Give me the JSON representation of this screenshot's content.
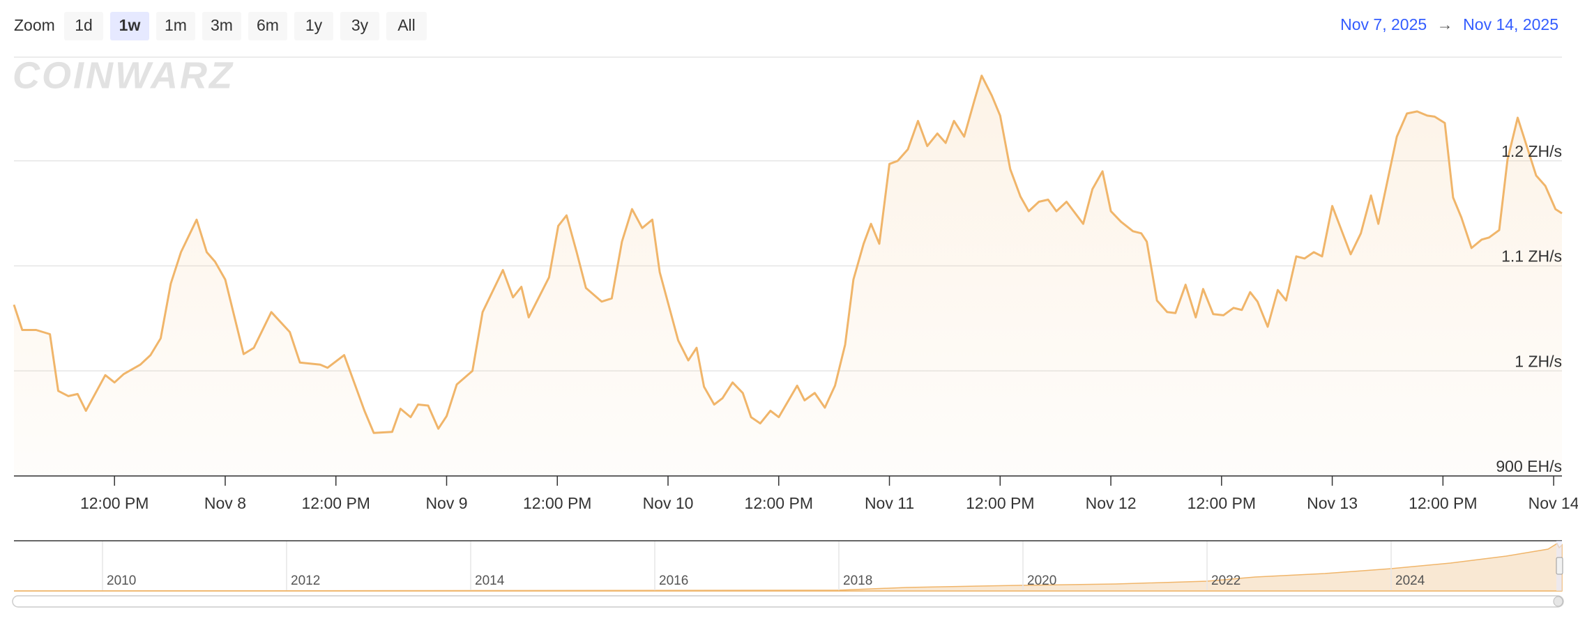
{
  "zoom": {
    "label": "Zoom",
    "buttons": [
      "1d",
      "1w",
      "1m",
      "3m",
      "6m",
      "1y",
      "3y",
      "All"
    ],
    "selected": 1
  },
  "range": {
    "from": "Nov 7, 2025",
    "separator": "→",
    "to": "Nov 14, 2025"
  },
  "watermark": "COINWARZ",
  "chart_data": {
    "type": "area",
    "color": "#f0b56a",
    "x": [
      1.1,
      2.0,
      3.5,
      5.0,
      5.9,
      7.0,
      8.0,
      8.9,
      11.0,
      12.0,
      13.0,
      14.8,
      15.9,
      17.0,
      18.1,
      19.2,
      20.9,
      22.0,
      22.9,
      24.0,
      26.0,
      27.1,
      29.0,
      31.0,
      32.1,
      34.3,
      35.1,
      36.9,
      39.1,
      40.1,
      42.1,
      43.0,
      44.1,
      44.9,
      46.0,
      47.1,
      48.0,
      49.1,
      50.8,
      51.9,
      54.1,
      55.2,
      56.1,
      56.9,
      59.1,
      60.1,
      61.0,
      62.1,
      63.1,
      64.8,
      65.9,
      67.0,
      68.1,
      69.2,
      70.3,
      71.1,
      73.1,
      74.2,
      75.1,
      75.9,
      77.0,
      77.9,
      79.0,
      80.1,
      81.0,
      82.0,
      83.1,
      84.0,
      86.0,
      86.8,
      87.9,
      89.0,
      90.1,
      91.2,
      92.1,
      93.2,
      94.0,
      94.9,
      96.0,
      96.9,
      98.0,
      99.1,
      100.1,
      101.2,
      102.1,
      103.0,
      104.1,
      105.2,
      106.0,
      107.1,
      108.0,
      109.1,
      110.2,
      111.1,
      112.2,
      113.2,
      114.1,
      115.2,
      117.0,
      118.0,
      119.1,
      120.0,
      121.1,
      122.4,
      123.3,
      123.9,
      125.0,
      126.1,
      127.0,
      128.1,
      129.2,
      130.0,
      131.1,
      132.2,
      133.3,
      134.2,
      135.1,
      135.9,
      137.0,
      138.1,
      139.0,
      140.1,
      141.0,
      142.0,
      142.9,
      144.0,
      146.0,
      147.1,
      148.2,
      149.0,
      151.0,
      152.1,
      153.2,
      154.3,
      155.1,
      156.2,
      157.1,
      158.0,
      159.1,
      160.2,
      161.0,
      162.1,
      163.0,
      164.1,
      166.1,
      167.1,
      168.2,
      168.9
    ],
    "values": [
      1063,
      1039,
      1039,
      1035,
      981,
      976,
      978,
      962,
      996,
      989,
      997,
      1006,
      1015,
      1031,
      1083,
      1113,
      1144,
      1113,
      1104,
      1087,
      1016,
      1022,
      1056,
      1037,
      1008,
      1006,
      1003,
      1015,
      962,
      941,
      942,
      964,
      956,
      968,
      967,
      945,
      957,
      987,
      1000,
      1056,
      1096,
      1070,
      1080,
      1051,
      1089,
      1138,
      1148,
      1113,
      1079,
      1066,
      1069,
      1123,
      1154,
      1136,
      1144,
      1094,
      1029,
      1010,
      1022,
      985,
      968,
      974,
      989,
      979,
      956,
      950,
      962,
      956,
      986,
      972,
      979,
      965,
      986,
      1025,
      1087,
      1121,
      1140,
      1121,
      1197,
      1200,
      1211,
      1238,
      1214,
      1226,
      1217,
      1238,
      1223,
      1257,
      1281,
      1262,
      1243,
      1192,
      1166,
      1152,
      1161,
      1163,
      1152,
      1161,
      1140,
      1173,
      1190,
      1152,
      1142,
      1133,
      1131,
      1123,
      1067,
      1056,
      1055,
      1082,
      1051,
      1078,
      1054,
      1053,
      1060,
      1058,
      1075,
      1066,
      1042,
      1077,
      1067,
      1109,
      1107,
      1113,
      1109,
      1157,
      1111,
      1131,
      1167,
      1140,
      1223,
      1245,
      1247,
      1243,
      1242,
      1236,
      1165,
      1146,
      1117,
      1125,
      1127,
      1134,
      1201,
      1241,
      1186,
      1176,
      1154,
      1150
    ],
    "xlim": [
      1.1,
      168.9
    ],
    "xticks": [
      {
        "value": 12,
        "label": "12:00 PM"
      },
      {
        "value": 24,
        "label": "Nov 8"
      },
      {
        "value": 36,
        "label": "12:00 PM"
      },
      {
        "value": 48,
        "label": "Nov 9"
      },
      {
        "value": 60,
        "label": "12:00 PM"
      },
      {
        "value": 72,
        "label": "Nov 10"
      },
      {
        "value": 84,
        "label": "12:00 PM"
      },
      {
        "value": 96,
        "label": "Nov 11"
      },
      {
        "value": 108,
        "label": "12:00 PM"
      },
      {
        "value": 120,
        "label": "Nov 12"
      },
      {
        "value": 132,
        "label": "12:00 PM"
      },
      {
        "value": 144,
        "label": "Nov 13"
      },
      {
        "value": 156,
        "label": "12:00 PM"
      },
      {
        "value": 168,
        "label": "Nov 14"
      }
    ],
    "ylim": [
      900,
      1300
    ],
    "yticks": [
      {
        "value": 900,
        "label": "900 EH/s"
      },
      {
        "value": 1000,
        "label": "1 ZH/s"
      },
      {
        "value": 1100,
        "label": "1.1 ZH/s"
      },
      {
        "value": 1200,
        "label": "1.2 ZH/s"
      }
    ],
    "grid": true
  },
  "navigator": {
    "years": [
      "2010",
      "2012",
      "2014",
      "2016",
      "2018",
      "2020",
      "2022",
      "2024"
    ]
  }
}
